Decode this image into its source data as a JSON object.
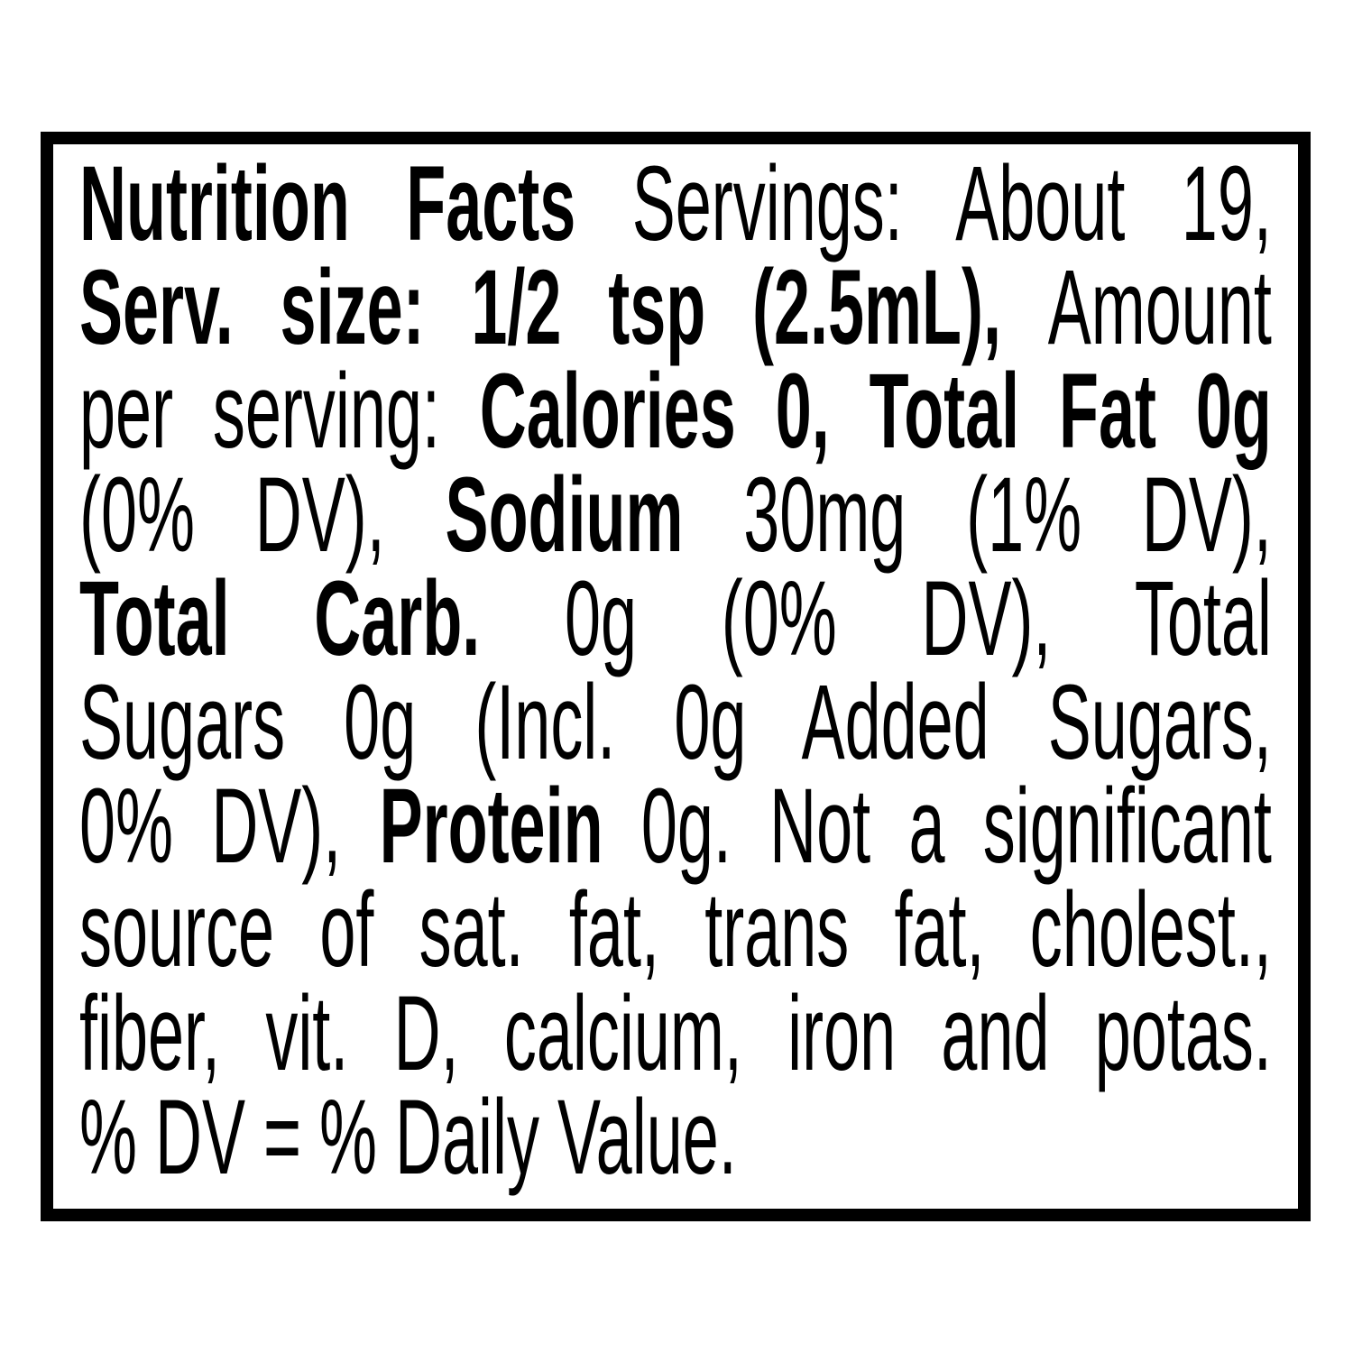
{
  "label": {
    "colors": {
      "text": "#000000",
      "background": "#ffffff",
      "border": "#000000"
    },
    "facts": {
      "servings": "About 19",
      "serving_size": "1/2 tsp (2.5mL)",
      "calories": "0",
      "total_fat": "0g (0% DV)",
      "sodium": "30mg (1% DV)",
      "total_carb": "0g (0% DV)",
      "total_sugars": "0g",
      "added_sugars": "Incl. 0g Added Sugars, 0% DV",
      "protein": "0g",
      "disclaimer": "Not a significant source of sat. fat, trans fat, cholest., fiber, vit. D, calcium, iron and potas.",
      "footnote": "% DV = % Daily Value."
    },
    "lines": [
      {
        "segments": [
          {
            "text": "Nutrition Facts ",
            "bold": true
          },
          {
            "text": "Servings: About 19,",
            "bold": false
          }
        ]
      },
      {
        "segments": [
          {
            "text": "Serv. size: 1/2 tsp (2.5mL), ",
            "bold": true
          },
          {
            "text": "Amount",
            "bold": false
          }
        ]
      },
      {
        "segments": [
          {
            "text": "per serving: ",
            "bold": false
          },
          {
            "text": "Calories 0, Total Fat 0g",
            "bold": true
          }
        ]
      },
      {
        "segments": [
          {
            "text": "(0% DV), ",
            "bold": false
          },
          {
            "text": "Sodium",
            "bold": true
          },
          {
            "text": " 30mg (1% DV),",
            "bold": false
          }
        ]
      },
      {
        "segments": [
          {
            "text": "Total Carb.",
            "bold": true
          },
          {
            "text": " 0g (0% DV), Total",
            "bold": false
          }
        ]
      },
      {
        "segments": [
          {
            "text": "Sugars 0g (Incl. 0g Added Sugars,",
            "bold": false
          }
        ]
      },
      {
        "segments": [
          {
            "text": "0% DV), ",
            "bold": false
          },
          {
            "text": "Protein",
            "bold": true
          },
          {
            "text": " 0g. Not a significant",
            "bold": false
          }
        ]
      },
      {
        "segments": [
          {
            "text": "source of sat. fat, trans fat, cholest.,",
            "bold": false
          }
        ]
      },
      {
        "segments": [
          {
            "text": "fiber, vit. D, calcium, iron and potas.",
            "bold": false
          }
        ]
      },
      {
        "segments": [
          {
            "text": "% DV = % Daily Value.",
            "bold": false
          }
        ]
      }
    ]
  }
}
